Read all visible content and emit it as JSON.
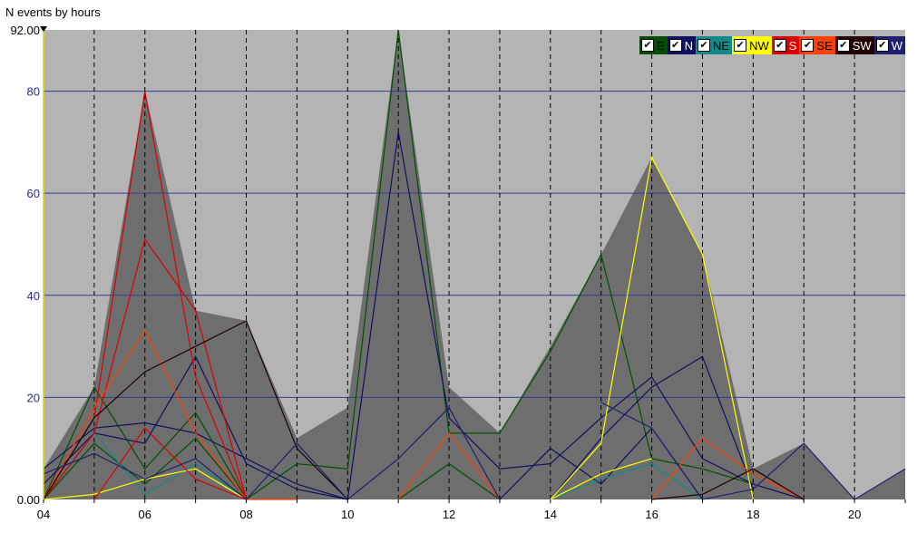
{
  "title": "N events by hours",
  "legend": [
    {
      "label": "E",
      "bg": "#005000",
      "fg": "#000000"
    },
    {
      "label": "N",
      "bg": "#101060",
      "fg": "#ffffff"
    },
    {
      "label": "NE",
      "bg": "#108a8a",
      "fg": "#000000"
    },
    {
      "label": "NW",
      "bg": "#ffff00",
      "fg": "#000000"
    },
    {
      "label": "S",
      "bg": "#dd0000",
      "fg": "#ffffff"
    },
    {
      "label": "SE",
      "bg": "#ff4000",
      "fg": "#000000"
    },
    {
      "label": "SW",
      "bg": "#200000",
      "fg": "#ffffff"
    },
    {
      "label": "W",
      "bg": "#202070",
      "fg": "#ffffff"
    }
  ],
  "colors": {
    "background": "#b4b4b4",
    "envelope": "#6e6e6e",
    "gridline": "#3a3a9a",
    "yaxis": "#d8d800",
    "dashed_vertical": "#000000"
  },
  "chart_data": {
    "type": "line",
    "title": "N events by hours",
    "xlim": [
      4,
      21
    ],
    "ylim": [
      0,
      92
    ],
    "x_ticks": [
      "04",
      "06",
      "08",
      "10",
      "12",
      "14",
      "16",
      "18",
      "20"
    ],
    "y_ticks": [
      "0.00",
      "20",
      "40",
      "60",
      "80",
      "92.00"
    ],
    "grid": true,
    "legend_position": "top-right",
    "envelope": {
      "x": [
        4,
        5,
        6,
        7,
        8,
        9,
        10,
        11,
        12,
        13,
        14,
        15,
        16,
        17,
        18,
        19,
        20,
        21
      ],
      "y": [
        6,
        22,
        80,
        37,
        35,
        12,
        18,
        92,
        22,
        13,
        30,
        48,
        67,
        48,
        6,
        11,
        0,
        6
      ]
    },
    "series": [
      {
        "name": "E",
        "color": "#005000",
        "x": [
          4,
          5,
          6,
          7,
          8,
          9,
          10,
          11,
          12,
          13,
          14,
          15,
          16,
          17,
          18
        ],
        "y": [
          0,
          22,
          6,
          17,
          0,
          7,
          6,
          92,
          13,
          13,
          29,
          48,
          8,
          6,
          3
        ]
      },
      {
        "name": "E",
        "color": "#005000",
        "x": [
          4,
          5,
          6,
          7,
          8
        ],
        "y": [
          0,
          11,
          3,
          12,
          0
        ]
      },
      {
        "name": "E",
        "color": "#005000",
        "x": [
          11,
          12,
          13
        ],
        "y": [
          0,
          7,
          0
        ]
      },
      {
        "name": "N",
        "color": "#101060",
        "x": [
          4,
          5,
          6,
          7,
          8,
          9,
          10,
          11,
          12,
          13,
          14,
          15,
          16,
          17,
          18,
          19
        ],
        "y": [
          6,
          14,
          15,
          13,
          8,
          3,
          0,
          72,
          16,
          6,
          7,
          16,
          24,
          8,
          3,
          0
        ]
      },
      {
        "name": "N",
        "color": "#101060",
        "x": [
          4,
          5,
          6,
          7,
          8,
          9,
          10
        ],
        "y": [
          3,
          13,
          11,
          28,
          7,
          2,
          0
        ]
      },
      {
        "name": "N",
        "color": "#101060",
        "x": [
          13,
          14,
          15,
          16,
          17
        ],
        "y": [
          0,
          10,
          3,
          14,
          0
        ]
      },
      {
        "name": "N",
        "color": "#101060",
        "x": [
          14,
          15,
          16,
          17,
          18
        ],
        "y": [
          0,
          12,
          22,
          28,
          2
        ]
      },
      {
        "name": "NE",
        "color": "#108a8a",
        "x": [
          4,
          5,
          6,
          7,
          8
        ],
        "y": [
          0,
          13,
          1,
          7,
          0
        ]
      },
      {
        "name": "NE",
        "color": "#108a8a",
        "x": [
          14,
          15,
          16,
          17
        ],
        "y": [
          0,
          4,
          7,
          0
        ]
      },
      {
        "name": "NW",
        "color": "#ffff00",
        "x": [
          4,
          5,
          6,
          7,
          8
        ],
        "y": [
          0,
          1,
          4,
          6,
          0
        ]
      },
      {
        "name": "NW",
        "color": "#ffff00",
        "x": [
          14,
          15,
          16,
          17,
          18
        ],
        "y": [
          0,
          11,
          67,
          48,
          0
        ]
      },
      {
        "name": "NW",
        "color": "#ffff00",
        "x": [
          14,
          15,
          16
        ],
        "y": [
          0,
          5,
          8
        ]
      },
      {
        "name": "S",
        "color": "#dd0000",
        "x": [
          4,
          5,
          6,
          7,
          8
        ],
        "y": [
          0,
          16,
          80,
          24,
          0
        ]
      },
      {
        "name": "S",
        "color": "#dd0000",
        "x": [
          4,
          5,
          6,
          7,
          8
        ],
        "y": [
          0,
          13,
          51,
          37,
          0
        ]
      },
      {
        "name": "S",
        "color": "#dd0000",
        "x": [
          5,
          6,
          7,
          8
        ],
        "y": [
          0,
          14,
          4,
          0
        ]
      },
      {
        "name": "SE",
        "color": "#ff4000",
        "x": [
          4,
          5,
          6,
          7,
          8,
          9
        ],
        "y": [
          0,
          18,
          33,
          13,
          0,
          0
        ]
      },
      {
        "name": "SE",
        "color": "#ff4000",
        "x": [
          11,
          12,
          13
        ],
        "y": [
          0,
          13,
          0
        ]
      },
      {
        "name": "SE",
        "color": "#ff4000",
        "x": [
          16,
          17,
          18,
          19
        ],
        "y": [
          0,
          12,
          5,
          0
        ]
      },
      {
        "name": "SW",
        "color": "#200000",
        "x": [
          4,
          5,
          6,
          7,
          8,
          9,
          10
        ],
        "y": [
          0,
          16,
          25,
          30,
          35,
          10,
          0
        ]
      },
      {
        "name": "SW",
        "color": "#200000",
        "x": [
          16,
          17,
          18,
          19
        ],
        "y": [
          0,
          1,
          6,
          0
        ]
      },
      {
        "name": "W",
        "color": "#202070",
        "x": [
          4,
          5,
          6,
          7,
          8,
          9,
          10
        ],
        "y": [
          5,
          9,
          4,
          8,
          0,
          11,
          0
        ]
      },
      {
        "name": "W",
        "color": "#202070",
        "x": [
          10,
          11,
          12,
          13
        ],
        "y": [
          0,
          8,
          18,
          0
        ]
      },
      {
        "name": "W",
        "color": "#202070",
        "x": [
          15,
          16,
          17,
          18,
          19,
          20,
          21
        ],
        "y": [
          19,
          14,
          0,
          2,
          11,
          0,
          6
        ]
      }
    ]
  }
}
